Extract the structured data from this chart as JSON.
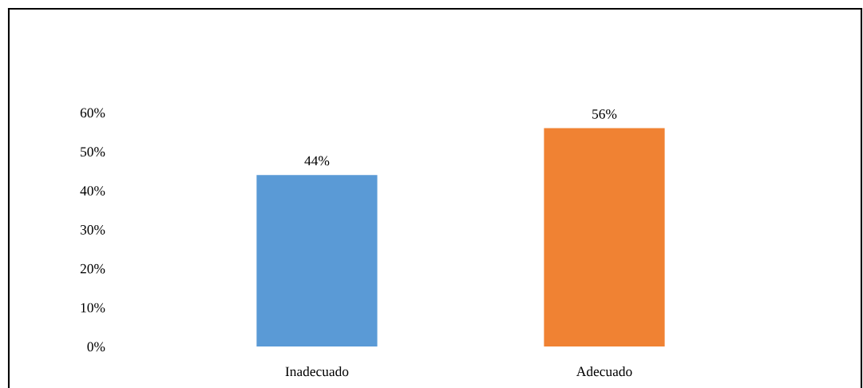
{
  "chart_data": {
    "type": "bar",
    "categories": [
      "Inadecuado",
      "Adecuado"
    ],
    "values": [
      44,
      56
    ],
    "colors": [
      "#5a9ad6",
      "#f08233"
    ],
    "value_labels": [
      "44%",
      "56%"
    ],
    "ylim": [
      0,
      60
    ],
    "yticks": [
      {
        "value": 0,
        "label": "0%"
      },
      {
        "value": 10,
        "label": "10%"
      },
      {
        "value": 20,
        "label": "20%"
      },
      {
        "value": 30,
        "label": "30%"
      },
      {
        "value": 40,
        "label": "40%"
      },
      {
        "value": 50,
        "label": "50%"
      },
      {
        "value": 60,
        "label": "60%"
      }
    ],
    "grid": false
  }
}
